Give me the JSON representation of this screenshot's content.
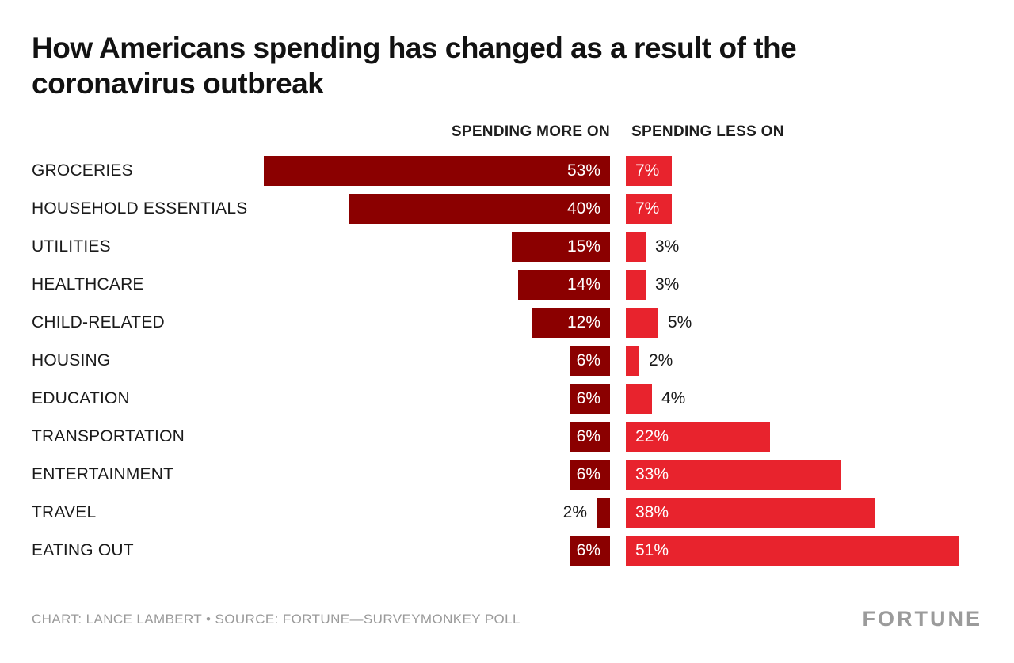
{
  "chart_data": {
    "type": "bar",
    "orientation": "horizontal-diverging",
    "title": "How Americans spending has changed as a result of the coronavirus outbreak",
    "categories": [
      "GROCERIES",
      "HOUSEHOLD ESSENTIALS",
      "UTILITIES",
      "HEALTHCARE",
      "CHILD-RELATED",
      "HOUSING",
      "EDUCATION",
      "TRANSPORTATION",
      "ENTERTAINMENT",
      "TRAVEL",
      "EATING OUT"
    ],
    "series": [
      {
        "name": "SPENDING MORE ON",
        "values": [
          53,
          40,
          15,
          14,
          12,
          6,
          6,
          6,
          6,
          2,
          6
        ],
        "color": "#8b0000"
      },
      {
        "name": "SPENDING LESS ON",
        "values": [
          7,
          7,
          3,
          3,
          5,
          2,
          4,
          22,
          33,
          38,
          51
        ],
        "color": "#e8232d"
      }
    ],
    "value_suffix": "%",
    "xlim": [
      0,
      55
    ],
    "grid": false,
    "legend_position": "column-headers"
  },
  "footer": {
    "credit": "CHART: LANCE LAMBERT • SOURCE: FORTUNE—SURVEYMONKEY POLL",
    "logo": "FORTUNE"
  }
}
